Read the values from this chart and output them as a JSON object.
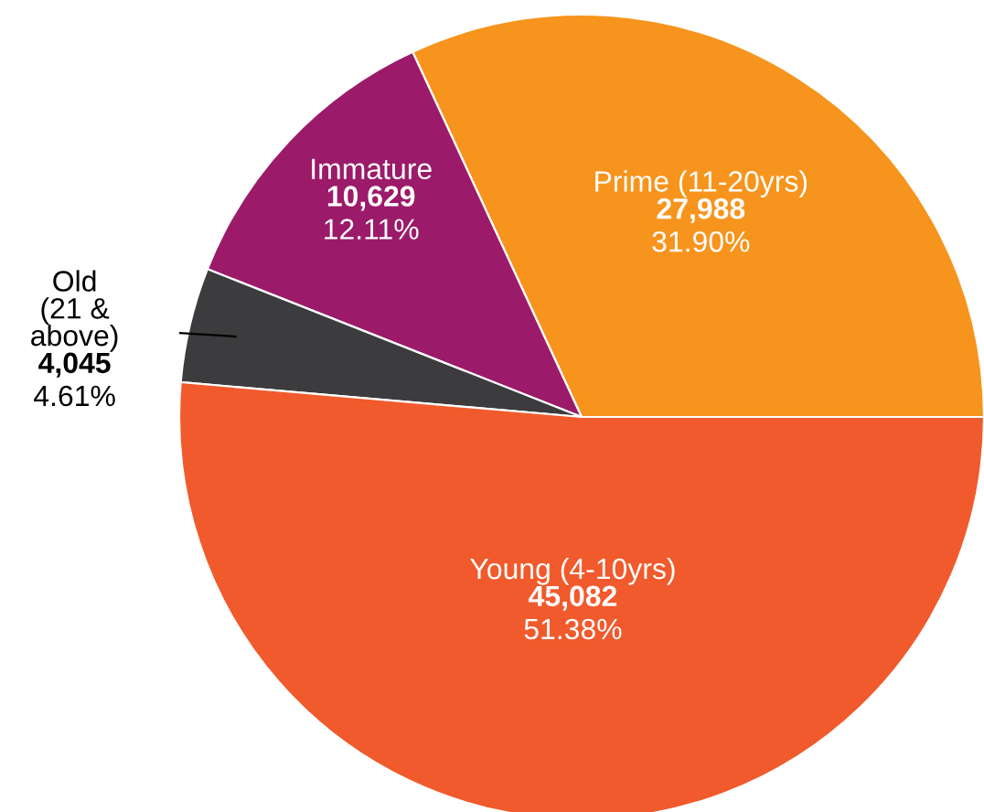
{
  "chart_data": {
    "type": "pie",
    "categories": [
      "Prime (11-20yrs)",
      "Immature",
      "Old\n(21 &\nabove)",
      "Young (4-10yrs)"
    ],
    "values": [
      27988,
      10629,
      4045,
      45082
    ],
    "value_labels": [
      "27,988",
      "10,629",
      "4,045",
      "45,082"
    ],
    "annotations": [
      "31.90%",
      "12.11%",
      "4.61%",
      "51.38%"
    ],
    "colors": [
      "#f7941d",
      "#9b1b6a",
      "#3c3c3e",
      "#f15a2c"
    ]
  }
}
